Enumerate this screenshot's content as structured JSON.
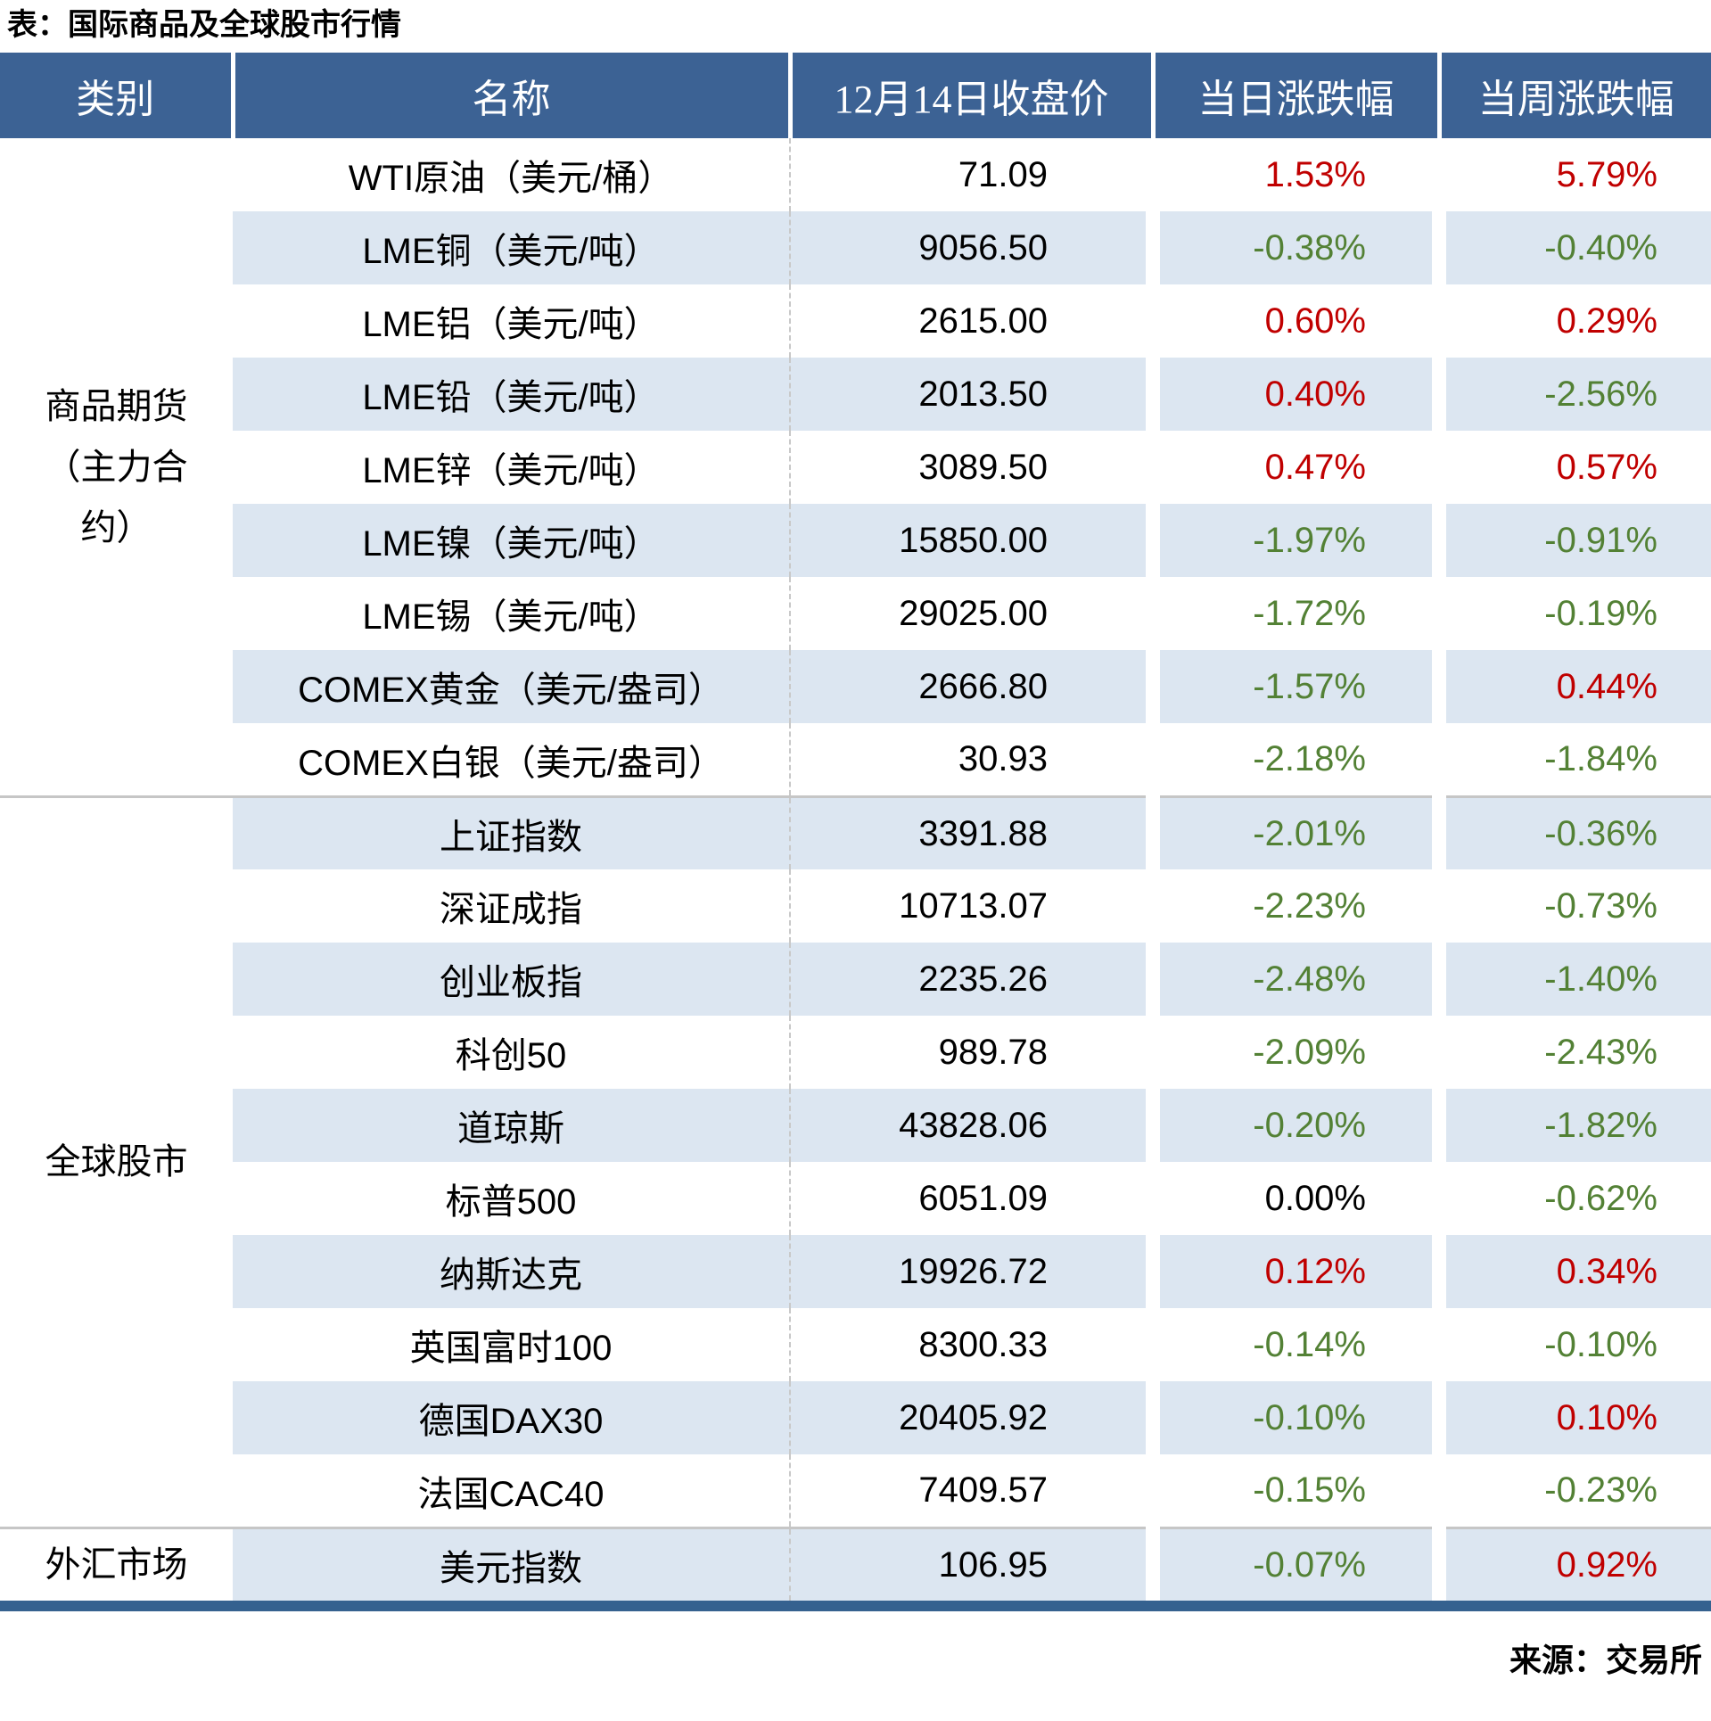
{
  "title": "表：国际商品及全球股市行情",
  "source": "来源：交易所",
  "colors": {
    "header_bg": "#3C6294",
    "stripe_bg": "#DCE6F1",
    "up_red": "#C00000",
    "down_green": "#538135",
    "flat_black": "#000000",
    "bottom_bar": "#35618F"
  },
  "chart_data": {
    "type": "table",
    "columns": [
      "类别",
      "名称",
      "12月14日收盘价",
      "当日涨跌幅",
      "当周涨跌幅"
    ],
    "sections": [
      {
        "category": "商品期货（主力合约）",
        "rows": [
          {
            "name": "WTI原油（美元/桶）",
            "close": "71.09",
            "day": "1.53%",
            "day_dir": "up",
            "week": "5.79%",
            "week_dir": "up"
          },
          {
            "name": "LME铜（美元/吨）",
            "close": "9056.50",
            "day": "-0.38%",
            "day_dir": "down",
            "week": "-0.40%",
            "week_dir": "down"
          },
          {
            "name": "LME铝（美元/吨）",
            "close": "2615.00",
            "day": "0.60%",
            "day_dir": "up",
            "week": "0.29%",
            "week_dir": "up"
          },
          {
            "name": "LME铅（美元/吨）",
            "close": "2013.50",
            "day": "0.40%",
            "day_dir": "up",
            "week": "-2.56%",
            "week_dir": "down"
          },
          {
            "name": "LME锌（美元/吨）",
            "close": "3089.50",
            "day": "0.47%",
            "day_dir": "up",
            "week": "0.57%",
            "week_dir": "up"
          },
          {
            "name": "LME镍（美元/吨）",
            "close": "15850.00",
            "day": "-1.97%",
            "day_dir": "down",
            "week": "-0.91%",
            "week_dir": "down"
          },
          {
            "name": "LME锡（美元/吨）",
            "close": "29025.00",
            "day": "-1.72%",
            "day_dir": "down",
            "week": "-0.19%",
            "week_dir": "down"
          },
          {
            "name": "COMEX黄金（美元/盎司）",
            "close": "2666.80",
            "day": "-1.57%",
            "day_dir": "down",
            "week": "0.44%",
            "week_dir": "up"
          },
          {
            "name": "COMEX白银（美元/盎司）",
            "close": "30.93",
            "day": "-2.18%",
            "day_dir": "down",
            "week": "-1.84%",
            "week_dir": "down"
          }
        ]
      },
      {
        "category": "全球股市",
        "rows": [
          {
            "name": "上证指数",
            "close": "3391.88",
            "day": "-2.01%",
            "day_dir": "down",
            "week": "-0.36%",
            "week_dir": "down"
          },
          {
            "name": "深证成指",
            "close": "10713.07",
            "day": "-2.23%",
            "day_dir": "down",
            "week": "-0.73%",
            "week_dir": "down"
          },
          {
            "name": "创业板指",
            "close": "2235.26",
            "day": "-2.48%",
            "day_dir": "down",
            "week": "-1.40%",
            "week_dir": "down"
          },
          {
            "name": "科创50",
            "close": "989.78",
            "day": "-2.09%",
            "day_dir": "down",
            "week": "-2.43%",
            "week_dir": "down"
          },
          {
            "name": "道琼斯",
            "close": "43828.06",
            "day": "-0.20%",
            "day_dir": "down",
            "week": "-1.82%",
            "week_dir": "down"
          },
          {
            "name": "标普500",
            "close": "6051.09",
            "day": "0.00%",
            "day_dir": "flat",
            "week": "-0.62%",
            "week_dir": "down"
          },
          {
            "name": "纳斯达克",
            "close": "19926.72",
            "day": "0.12%",
            "day_dir": "up",
            "week": "0.34%",
            "week_dir": "up"
          },
          {
            "name": "英国富时100",
            "close": "8300.33",
            "day": "-0.14%",
            "day_dir": "down",
            "week": "-0.10%",
            "week_dir": "down"
          },
          {
            "name": "德国DAX30",
            "close": "20405.92",
            "day": "-0.10%",
            "day_dir": "down",
            "week": "0.10%",
            "week_dir": "up"
          },
          {
            "name": "法国CAC40",
            "close": "7409.57",
            "day": "-0.15%",
            "day_dir": "down",
            "week": "-0.23%",
            "week_dir": "down"
          }
        ]
      },
      {
        "category": "外汇市场",
        "rows": [
          {
            "name": "美元指数",
            "close": "106.95",
            "day": "-0.07%",
            "day_dir": "down",
            "week": "0.92%",
            "week_dir": "up"
          }
        ]
      }
    ]
  }
}
